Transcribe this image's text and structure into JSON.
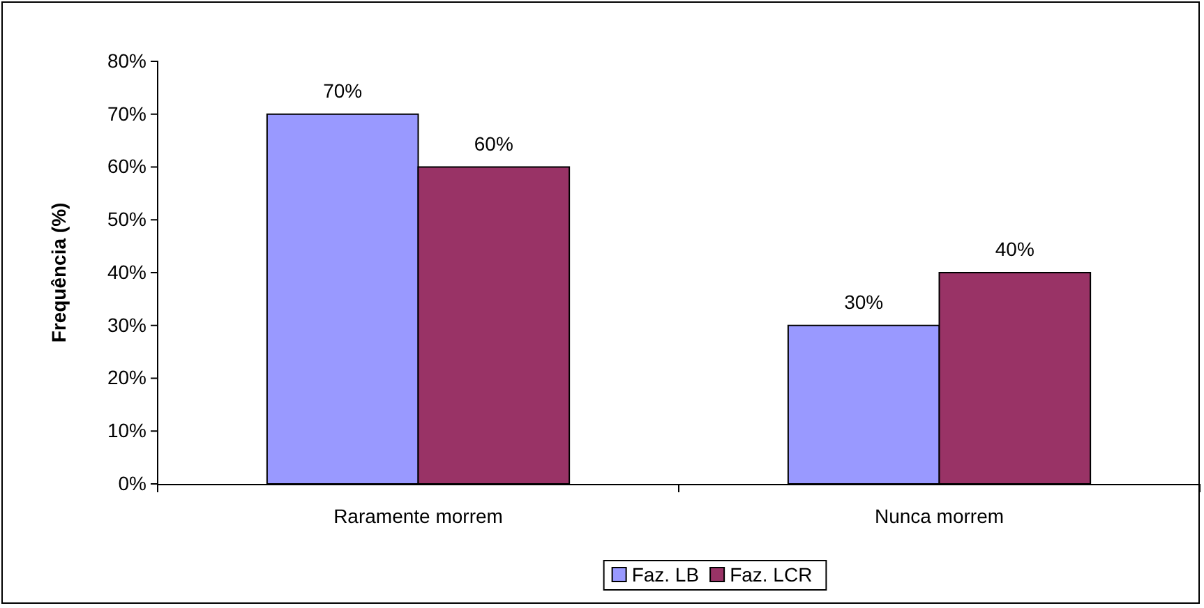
{
  "chart_data": {
    "type": "bar",
    "ylabel": "Frequência (%)",
    "categories": [
      "Raramente morrem",
      "Nunca morrem"
    ],
    "series": [
      {
        "name": "Faz. LB",
        "color": "#9999ff",
        "values": [
          70,
          30
        ],
        "value_labels": [
          "70%",
          "30%"
        ]
      },
      {
        "name": "Faz. LCR",
        "color": "#993366",
        "values": [
          60,
          40
        ],
        "value_labels": [
          "60%",
          "40%"
        ]
      }
    ],
    "ylim": [
      0,
      80
    ],
    "yticks": [
      {
        "value": 0,
        "label": "0%"
      },
      {
        "value": 10,
        "label": "10%"
      },
      {
        "value": 20,
        "label": "20%"
      },
      {
        "value": 30,
        "label": "30%"
      },
      {
        "value": 40,
        "label": "40%"
      },
      {
        "value": 50,
        "label": "50%"
      },
      {
        "value": 60,
        "label": "60%"
      },
      {
        "value": 70,
        "label": "70%"
      },
      {
        "value": 80,
        "label": "80%"
      }
    ],
    "grid": false,
    "legend": "bottom"
  }
}
